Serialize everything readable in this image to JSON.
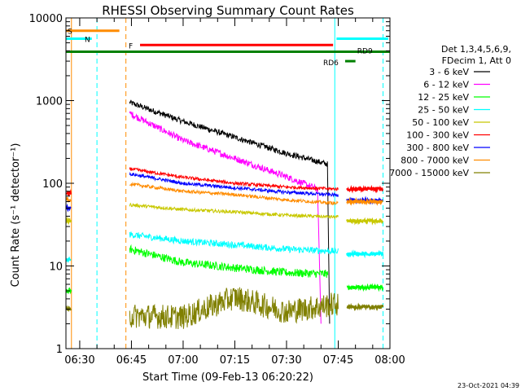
{
  "chart_data": {
    "type": "line",
    "title": "RHESSI Observing Summary Count Rates",
    "xlabel": "Start Time (09-Feb-13 06:20:22)",
    "ylabel": "Count Rate (s⁻¹ detector⁻¹)",
    "yscale": "log",
    "ylim": [
      1,
      10000
    ],
    "xlim_minutes": [
      6.0,
      100.0
    ],
    "x_ticks": [
      {
        "min": 10,
        "label": "06:30"
      },
      {
        "min": 25,
        "label": "06:45"
      },
      {
        "min": 40,
        "label": "07:00"
      },
      {
        "min": 55,
        "label": "07:15"
      },
      {
        "min": 70,
        "label": "07:30"
      },
      {
        "min": 85,
        "label": "07:45"
      },
      {
        "min": 100,
        "label": "08:00"
      }
    ],
    "y_ticks": [
      {
        "v": 1,
        "label": "1"
      },
      {
        "v": 10,
        "label": "10"
      },
      {
        "v": 100,
        "label": "100"
      },
      {
        "v": 1000,
        "label": "1000"
      },
      {
        "v": 10000,
        "label": "10000"
      }
    ],
    "legend": {
      "header": [
        "Det 1,3,4,5,6,9,",
        "FDecim 1, Att 0"
      ],
      "placement": "right",
      "entries": [
        {
          "label": "3 - 6 keV",
          "color": "#000000"
        },
        {
          "label": "6 - 12 keV",
          "color": "#ff00ff"
        },
        {
          "label": "12 - 25 keV",
          "color": "#00ff00"
        },
        {
          "label": "25 - 50 keV",
          "color": "#00ffff"
        },
        {
          "label": "50 - 100 keV",
          "color": "#c8c800"
        },
        {
          "label": "100 - 300 keV",
          "color": "#ff0000"
        },
        {
          "label": "300 - 800 keV",
          "color": "#0000ff"
        },
        {
          "label": "800 - 7000 keV",
          "color": "#ff8c00"
        },
        {
          "label": "7000 - 15000 keV",
          "color": "#808000"
        }
      ]
    },
    "series": [
      {
        "name": "3 - 6 keV",
        "color": "#000000",
        "x": [
          24.5,
          40,
          55,
          70,
          82,
          82.5
        ],
        "y": [
          950,
          560,
          360,
          230,
          170,
          2
        ]
      },
      {
        "name": "6 - 12 keV",
        "color": "#ff00ff",
        "x": [
          24.5,
          40,
          55,
          70,
          79,
          80
        ],
        "y": [
          700,
          330,
          200,
          120,
          85,
          2
        ]
      },
      {
        "name": "12 - 25 keV",
        "color": "#00ff00",
        "x": [
          24.5,
          40,
          55,
          70,
          82
        ],
        "y": [
          16,
          11,
          9.5,
          8.3,
          8
        ]
      },
      {
        "name": "25 - 50 keV",
        "color": "#00ffff",
        "x": [
          24.5,
          40,
          55,
          70,
          85
        ],
        "y": [
          24,
          20,
          18,
          16,
          15
        ]
      },
      {
        "name": "50 - 100 keV",
        "color": "#c8c800",
        "x": [
          24.5,
          40,
          55,
          70,
          85
        ],
        "y": [
          55,
          48,
          45,
          41,
          39
        ]
      },
      {
        "name": "100 - 300 keV",
        "color": "#ff0000",
        "x": [
          24.5,
          40,
          55,
          70,
          85
        ],
        "y": [
          150,
          118,
          100,
          90,
          85
        ]
      },
      {
        "name": "300 - 800 keV",
        "color": "#0000ff",
        "x": [
          24.5,
          40,
          55,
          70,
          85
        ],
        "y": [
          130,
          100,
          88,
          78,
          72
        ]
      },
      {
        "name": "800 - 7000 keV",
        "color": "#ff8c00",
        "x": [
          24.5,
          40,
          55,
          70,
          85
        ],
        "y": [
          98,
          80,
          73,
          63,
          57
        ]
      },
      {
        "name": "7000 - 15000 keV",
        "color": "#808000",
        "x": [
          24.5,
          40,
          55,
          70,
          85
        ],
        "y": [
          2.5,
          2.4,
          4.2,
          2.8,
          3.5
        ]
      }
    ],
    "pre_segment": {
      "x": [
        6.0,
        7.5
      ],
      "values": {
        "100 - 300 keV": 75,
        "300 - 800 keV": 50,
        "800 - 7000 keV": 63,
        "50 - 100 keV": 35,
        "25 - 50 keV": 12,
        "12 - 25 keV": 5,
        "7000 - 15000 keV": 3
      }
    },
    "post_segment": {
      "x": [
        87.5,
        98
      ],
      "values": {
        "100 - 300 keV": 85,
        "300 - 800 keV": 62,
        "800 - 7000 keV": 60,
        "50 - 100 keV": 35,
        "25 - 50 keV": 14,
        "12 - 25 keV": 5.5,
        "7000 - 15000 keV": 3.2
      }
    },
    "vertical_markers": [
      {
        "x": 7.6,
        "color": "#ff8c00",
        "style": "solid"
      },
      {
        "x": 15.0,
        "color": "#00ffff",
        "style": "dashed"
      },
      {
        "x": 23.4,
        "color": "#ff8c00",
        "style": "dashed"
      },
      {
        "x": 84.0,
        "color": "#00ffff",
        "style": "solid"
      },
      {
        "x": 98.0,
        "color": "#00ffff",
        "style": "dashed"
      }
    ],
    "flags": [
      {
        "label": "S",
        "color": "#ff8c00",
        "x": [
          6.0,
          21.5
        ],
        "y": 7000
      },
      {
        "label": "N",
        "color": "#00ffff",
        "x": [
          6.0,
          13.5
        ],
        "y": 5600
      },
      {
        "label": "",
        "color": "#00ffff",
        "x": [
          84.5,
          99.5
        ],
        "y": 5600
      },
      {
        "label": "F",
        "color": "#ff0000",
        "x": [
          27.5,
          83.5
        ],
        "y": 4700
      },
      {
        "label": "",
        "color": "#008000",
        "x": [
          6.0,
          100
        ],
        "y": 3900
      },
      {
        "label": "RD9",
        "color": "#008000",
        "x": [
          90.5,
          93.5
        ],
        "y": 3900
      },
      {
        "label": "RD6",
        "color": "#008000",
        "x": [
          87.0,
          90.0
        ],
        "y": 3000
      }
    ]
  },
  "footer": {
    "timestamp": "23-Oct-2021 04:39"
  }
}
